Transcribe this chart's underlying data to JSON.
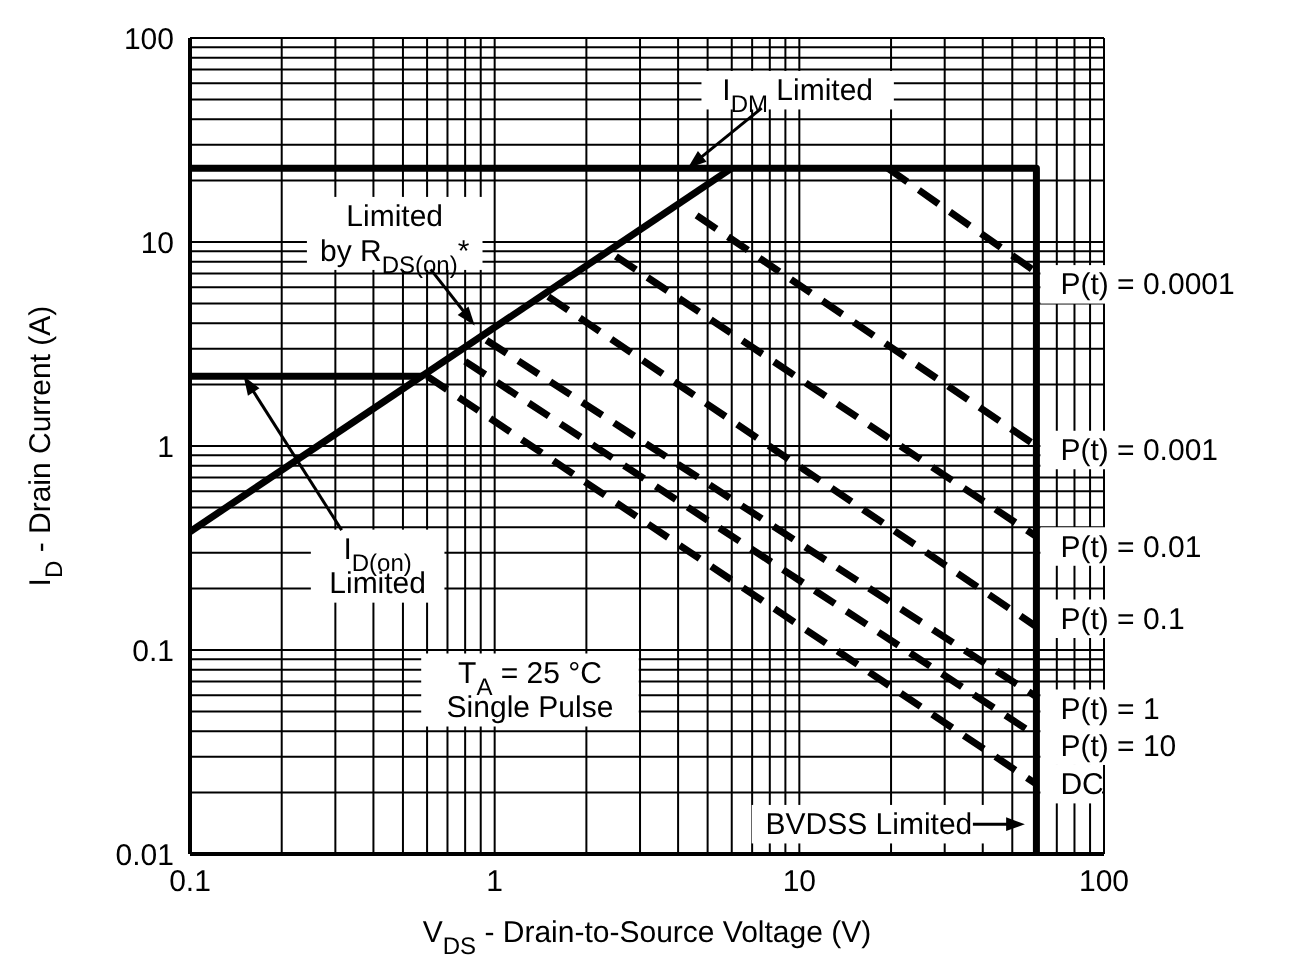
{
  "chart_data": {
    "type": "line",
    "xlabel": "V$_{DS}$ -  Drain-to-Source Voltage (V)",
    "ylabel": "I$_{D}$ -  Drain Current (A)",
    "log": "xy",
    "grid": true,
    "xlim": [
      0.1,
      100
    ],
    "ylim": [
      0.01,
      100
    ],
    "xticks": [
      0.1,
      {
        "value": 0.2,
        "label": null
      },
      {
        "value": 0.3,
        "label": null
      },
      {
        "value": 0.4,
        "label": null
      },
      {
        "value": 0.5,
        "label": null
      },
      {
        "value": 0.6,
        "label": null
      },
      {
        "value": 0.7,
        "label": null
      },
      {
        "value": 0.8,
        "label": null
      },
      {
        "value": 0.9,
        "label": null
      },
      1,
      {
        "value": 2,
        "label": null
      },
      {
        "value": 3,
        "label": null
      },
      {
        "value": 4,
        "label": null
      },
      {
        "value": 5,
        "label": null
      },
      {
        "value": 6,
        "label": null
      },
      {
        "value": 7,
        "label": null
      },
      {
        "value": 8,
        "label": null
      },
      {
        "value": 9,
        "label": null
      },
      10,
      {
        "value": 20,
        "label": null
      },
      {
        "value": 30,
        "label": null
      },
      {
        "value": 40,
        "label": null
      },
      {
        "value": 50,
        "label": null
      },
      {
        "value": 60,
        "label": null
      },
      {
        "value": 70,
        "label": null
      },
      {
        "value": 80,
        "label": null
      },
      {
        "value": 90,
        "label": null
      },
      100
    ],
    "yticks": [
      0.01,
      {
        "value": 0.02,
        "label": null
      },
      {
        "value": 0.03,
        "label": null
      },
      {
        "value": 0.04,
        "label": null
      },
      {
        "value": 0.05,
        "label": null
      },
      {
        "value": 0.06,
        "label": null
      },
      {
        "value": 0.07,
        "label": null
      },
      {
        "value": 0.08,
        "label": null
      },
      {
        "value": 0.09,
        "label": null
      },
      0.1,
      {
        "value": 0.2,
        "label": null
      },
      {
        "value": 0.3,
        "label": null
      },
      {
        "value": 0.4,
        "label": null
      },
      {
        "value": 0.5,
        "label": null
      },
      {
        "value": 0.6,
        "label": null
      },
      {
        "value": 0.7,
        "label": null
      },
      {
        "value": 0.8,
        "label": null
      },
      {
        "value": 0.9,
        "label": null
      },
      1,
      {
        "value": 2,
        "label": null
      },
      {
        "value": 3,
        "label": null
      },
      {
        "value": 4,
        "label": null
      },
      {
        "value": 5,
        "label": null
      },
      {
        "value": 6,
        "label": null
      },
      {
        "value": 7,
        "label": null
      },
      {
        "value": 8,
        "label": null
      },
      {
        "value": 9,
        "label": null
      },
      10,
      {
        "value": 20,
        "label": null
      },
      {
        "value": 30,
        "label": null
      },
      {
        "value": 40,
        "label": null
      },
      {
        "value": 50,
        "label": null
      },
      {
        "value": 60,
        "label": null
      },
      {
        "value": 70,
        "label": null
      },
      {
        "value": 80,
        "label": null
      },
      {
        "value": 90,
        "label": null
      },
      100
    ],
    "series": [
      {
        "color": "#000000",
        "line_style": "solid",
        "x": [
          0.1,
          6
        ],
        "values": [
          0.38,
          23
        ]
      },
      {
        "color": "#000000",
        "line_style": "solid",
        "x": [
          0.1,
          60,
          60
        ],
        "values": [
          23,
          23,
          0.01
        ]
      },
      {
        "color": "#000000",
        "line_style": "solid",
        "x": [
          0.1,
          0.58
        ],
        "values": [
          2.2,
          2.2
        ]
      },
      {
        "name": "P(t) = 0.0001",
        "color": "#000000",
        "line_style": "dashed",
        "x": [
          19.5,
          60
        ],
        "values": [
          23,
          7.1
        ]
      },
      {
        "name": "P(t) = 0.001",
        "color": "#000000",
        "line_style": "dashed",
        "x": [
          4.6,
          60
        ],
        "values": [
          13.5,
          1.0
        ]
      },
      {
        "name": "P(t) = 0.01",
        "color": "#000000",
        "line_style": "dashed",
        "x": [
          2.5,
          60
        ],
        "values": [
          8.5,
          0.36
        ]
      },
      {
        "name": "P(t) = 0.1",
        "color": "#000000",
        "line_style": "dashed",
        "x": [
          1.5,
          60
        ],
        "values": [
          5.4,
          0.13
        ]
      },
      {
        "name": "P(t) = 1",
        "color": "#000000",
        "line_style": "dashed",
        "x": [
          0.94,
          60
        ],
        "values": [
          3.3,
          0.059
        ]
      },
      {
        "name": "P(t) = 10",
        "color": "#000000",
        "line_style": "dashed",
        "x": [
          0.8,
          60
        ],
        "values": [
          2.6,
          0.038
        ]
      },
      {
        "name": "DC",
        "color": "#000000",
        "line_style": "dashed",
        "x": [
          0.6,
          60
        ],
        "values": [
          2.2,
          0.022
        ]
      }
    ],
    "annotations": [
      {
        "text": "I$_{DM}$ Limited",
        "x": 4.3,
        "y": 23
      },
      {
        "text": "Limited\nby R$_{DS(on)}$*",
        "x": 0.86,
        "y": 3.9
      },
      {
        "text": "I$_{D(on)}$\nLimited",
        "x": 0.15,
        "y": 2.2
      },
      "T$_{A}$ = 25 °C\nSingle Pulse",
      {
        "text": "BVDSS Limited",
        "x": 55,
        "y": 0.014
      }
    ]
  }
}
